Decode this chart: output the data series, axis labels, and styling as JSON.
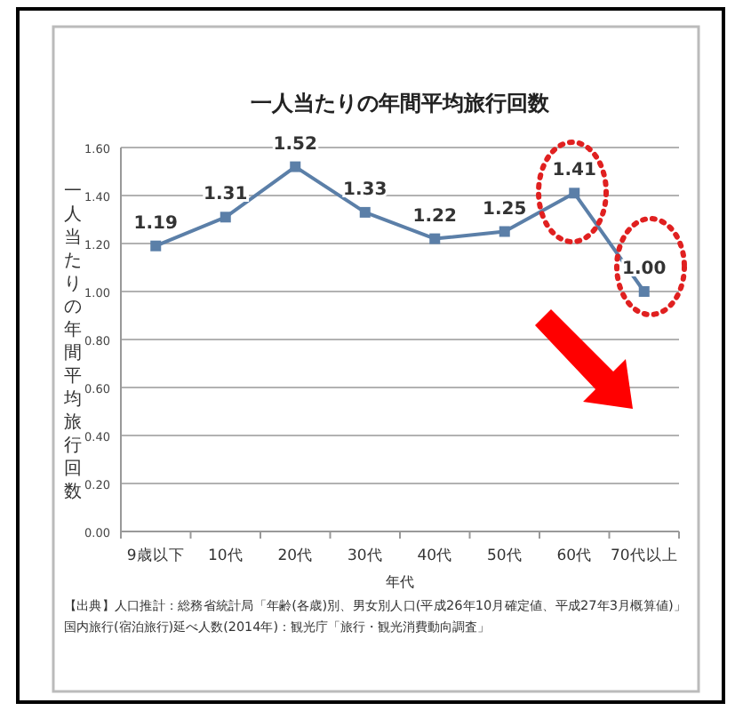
{
  "chart_data": {
    "type": "line",
    "title": "一人当たりの年間平均旅行回数",
    "xlabel": "年代",
    "ylabel": "一人当たりの年間平均旅行回数",
    "categories": [
      "9歳以下",
      "10代",
      "20代",
      "30代",
      "40代",
      "50代",
      "60代",
      "70代以上"
    ],
    "series": [
      {
        "color": "#5b7fa8",
        "values": [
          1.19,
          1.31,
          1.52,
          1.33,
          1.22,
          1.25,
          1.41,
          1.0
        ],
        "value_labels": [
          "1.19",
          "1.31",
          "1.52",
          "1.33",
          "1.22",
          "1.25",
          "1.41",
          "1.00"
        ]
      }
    ],
    "ylim": [
      0,
      1.6
    ],
    "yticks": [
      {
        "value": 0,
        "label": "0.00"
      },
      {
        "value": 0.2,
        "label": "0.20"
      },
      {
        "value": 0.4,
        "label": "0.40"
      },
      {
        "value": 0.6,
        "label": "0.60"
      },
      {
        "value": 0.8,
        "label": "0.80"
      },
      {
        "value": 1.0,
        "label": "1.00"
      },
      {
        "value": 1.2,
        "label": "1.20"
      },
      {
        "value": 1.4,
        "label": "1.40"
      },
      {
        "value": 1.6,
        "label": "1.60"
      }
    ],
    "grid": "y",
    "marker": "square",
    "line_style": "solid",
    "annotations": [
      "【出典】人口推計：総務省統計局「年齢(各歳)別、男女別人口(平成26年10月確定値、平成27年3月概算値)」",
      "国内旅行(宿泊旅行)延べ人数(2014年)：観光庁「旅行・観光消費動向調査」"
    ]
  }
}
